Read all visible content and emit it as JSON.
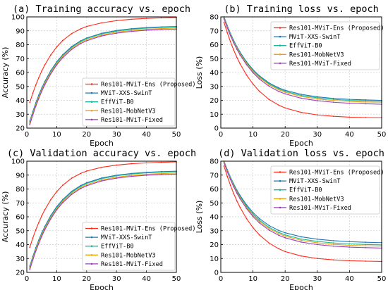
{
  "chart_data": [
    {
      "type": "line",
      "title": "(a) Training accuracy vs. epoch",
      "xlabel": "Epoch",
      "ylabel": "Accuracy (%)",
      "xlim": [
        0,
        50
      ],
      "ylim": [
        20,
        100
      ],
      "xticks": [
        0,
        10,
        20,
        30,
        40,
        50
      ],
      "yticks": [
        20,
        30,
        40,
        50,
        60,
        70,
        80,
        90,
        100
      ],
      "grid": true,
      "legend_position": "lower-right",
      "x": [
        1,
        2,
        3,
        4,
        5,
        6,
        8,
        10,
        12,
        15,
        18,
        20,
        25,
        30,
        35,
        40,
        45,
        50
      ],
      "series": [
        {
          "name": "Res101-MViT-Ens (Proposed)",
          "color": "#ff2a1a",
          "values": [
            38.5,
            45.1,
            51.0,
            56.3,
            61.1,
            65.4,
            72.6,
            78.4,
            83.0,
            88.0,
            91.4,
            93.1,
            95.7,
            97.3,
            98.3,
            98.9,
            99.3,
            99.6
          ]
        },
        {
          "name": "MViT-XXS-SwinT",
          "color": "#1f77b4",
          "values": [
            25.0,
            31.9,
            38.2,
            43.8,
            48.9,
            53.5,
            61.3,
            67.7,
            72.8,
            78.7,
            82.8,
            84.8,
            88.2,
            90.2,
            91.5,
            92.3,
            92.8,
            93.1
          ]
        },
        {
          "name": "EffViT-B0",
          "color": "#17b899",
          "values": [
            24.0,
            31.0,
            37.3,
            42.9,
            48.1,
            52.7,
            60.6,
            67.0,
            72.2,
            78.1,
            82.3,
            84.4,
            87.8,
            89.8,
            91.1,
            91.9,
            92.4,
            92.7
          ]
        },
        {
          "name": "Res101-MobNetV3",
          "color": "#f0a30a",
          "values": [
            23.5,
            30.4,
            36.7,
            42.3,
            47.4,
            52.0,
            59.9,
            66.3,
            71.5,
            77.4,
            81.6,
            83.6,
            87.0,
            89.0,
            90.3,
            91.1,
            91.6,
            91.9
          ]
        },
        {
          "name": "Res101-MViT-Fixed",
          "color": "#9a3fbf",
          "values": [
            22.5,
            29.4,
            35.7,
            41.3,
            46.5,
            51.1,
            59.0,
            65.5,
            70.6,
            76.6,
            80.8,
            82.8,
            86.3,
            88.3,
            89.6,
            90.4,
            90.9,
            91.2
          ]
        }
      ]
    },
    {
      "type": "line",
      "title": "(b) Training loss vs. epoch",
      "xlabel": "Epoch",
      "ylabel": "Loss (%)",
      "xlim": [
        0,
        50
      ],
      "ylim": [
        0,
        80
      ],
      "xticks": [
        0,
        10,
        20,
        30,
        40,
        50
      ],
      "yticks": [
        0,
        10,
        20,
        30,
        40,
        50,
        60,
        70,
        80
      ],
      "grid": true,
      "legend_position": "top-right",
      "x": [
        1,
        2,
        3,
        4,
        5,
        6,
        8,
        10,
        12,
        15,
        18,
        20,
        25,
        30,
        35,
        40,
        45,
        50
      ],
      "series": [
        {
          "name": "Res101-MViT-Ens (Proposed)",
          "color": "#ff2a1a",
          "values": [
            76.0,
            68.7,
            62.1,
            56.2,
            50.9,
            46.2,
            38.2,
            31.7,
            26.5,
            20.6,
            16.5,
            14.5,
            11.3,
            9.5,
            8.5,
            7.9,
            7.6,
            7.4
          ]
        },
        {
          "name": "MViT-XXS-SwinT",
          "color": "#1f77b4",
          "values": [
            80.0,
            73.8,
            68.1,
            63.1,
            58.6,
            54.6,
            47.7,
            42.1,
            37.6,
            32.5,
            28.9,
            27.2,
            24.3,
            22.5,
            21.4,
            20.7,
            20.3,
            20.0
          ]
        },
        {
          "name": "EffViT-B0",
          "color": "#17b899",
          "values": [
            79.5,
            73.3,
            67.6,
            62.6,
            58.1,
            54.0,
            47.1,
            41.5,
            37.0,
            31.9,
            28.3,
            26.5,
            23.5,
            21.8,
            20.7,
            20.0,
            19.6,
            19.3
          ]
        },
        {
          "name": "Res101-MobNetV3",
          "color": "#f0a30a",
          "values": [
            79.0,
            72.7,
            67.0,
            61.9,
            57.4,
            53.3,
            46.4,
            40.8,
            36.3,
            31.2,
            27.6,
            25.8,
            22.8,
            21.0,
            19.9,
            19.2,
            18.8,
            18.6
          ]
        },
        {
          "name": "Res101-MViT-Fixed",
          "color": "#9a3fbf",
          "values": [
            78.5,
            72.2,
            66.5,
            61.3,
            56.7,
            52.6,
            45.6,
            39.9,
            35.3,
            30.1,
            26.4,
            24.6,
            21.5,
            19.7,
            18.6,
            17.9,
            17.5,
            17.2
          ]
        }
      ]
    },
    {
      "type": "line",
      "title": "(c) Validation accuracy vs. epoch",
      "xlabel": "Epoch",
      "ylabel": "Accuracy (%)",
      "xlim": [
        0,
        50
      ],
      "ylim": [
        20,
        100
      ],
      "xticks": [
        0,
        10,
        20,
        30,
        40,
        50
      ],
      "yticks": [
        20,
        30,
        40,
        50,
        60,
        70,
        80,
        90,
        100
      ],
      "grid": true,
      "legend_position": "lower-right",
      "x": [
        1,
        2,
        3,
        4,
        5,
        6,
        8,
        10,
        12,
        15,
        18,
        20,
        25,
        30,
        35,
        40,
        45,
        50
      ],
      "series": [
        {
          "name": "Res101-MViT-Ens (Proposed)",
          "color": "#ff2a1a",
          "values": [
            38.0,
            44.7,
            50.6,
            55.9,
            60.7,
            65.0,
            72.3,
            78.1,
            82.7,
            87.8,
            91.2,
            92.9,
            95.6,
            97.2,
            98.2,
            98.8,
            99.2,
            99.5
          ]
        },
        {
          "name": "MViT-XXS-SwinT",
          "color": "#1f77b4",
          "values": [
            24.5,
            31.4,
            37.7,
            43.3,
            48.4,
            53.0,
            60.9,
            67.3,
            72.4,
            78.3,
            82.5,
            84.5,
            87.9,
            89.9,
            91.2,
            92.0,
            92.5,
            92.8
          ]
        },
        {
          "name": "EffViT-B0",
          "color": "#17b899",
          "values": [
            23.5,
            30.5,
            36.8,
            42.5,
            47.6,
            52.3,
            60.2,
            66.6,
            71.8,
            77.8,
            81.9,
            84.0,
            87.4,
            89.5,
            90.8,
            91.6,
            92.1,
            92.4
          ]
        },
        {
          "name": "Res101-MobNetV3",
          "color": "#f0a30a",
          "values": [
            23.0,
            29.9,
            36.2,
            41.8,
            46.9,
            51.5,
            59.4,
            65.8,
            71.0,
            76.9,
            81.1,
            83.1,
            86.5,
            88.5,
            89.8,
            90.6,
            91.1,
            91.4
          ]
        },
        {
          "name": "Res101-MViT-Fixed",
          "color": "#9a3fbf",
          "values": [
            22.0,
            28.9,
            35.2,
            40.8,
            46.0,
            50.6,
            58.5,
            65.0,
            70.1,
            76.1,
            80.3,
            82.3,
            85.8,
            87.8,
            89.1,
            89.9,
            90.4,
            90.7
          ]
        }
      ]
    },
    {
      "type": "line",
      "title": "(d) Validation loss vs. epoch",
      "xlabel": "Epoch",
      "ylabel": "Loss (%)",
      "xlim": [
        0,
        50
      ],
      "ylim": [
        0,
        80
      ],
      "xticks": [
        0,
        10,
        20,
        30,
        40,
        50
      ],
      "yticks": [
        0,
        10,
        20,
        30,
        40,
        50,
        60,
        70,
        80
      ],
      "grid": true,
      "legend_position": "top-right",
      "x": [
        1,
        2,
        3,
        4,
        5,
        6,
        8,
        10,
        12,
        15,
        18,
        20,
        25,
        30,
        35,
        40,
        45,
        50
      ],
      "series": [
        {
          "name": "Res101-MViT-Ens (Proposed)",
          "color": "#ff2a1a",
          "values": [
            76.5,
            69.2,
            62.6,
            56.7,
            51.4,
            46.7,
            38.7,
            32.2,
            27.0,
            21.1,
            17.0,
            15.0,
            11.8,
            10.0,
            9.0,
            8.4,
            8.1,
            7.9
          ]
        },
        {
          "name": "MViT-XXS-SwinT",
          "color": "#1f77b4",
          "values": [
            80.0,
            74.0,
            68.5,
            63.6,
            59.2,
            55.3,
            48.6,
            43.1,
            38.7,
            33.7,
            30.2,
            28.5,
            25.6,
            23.9,
            22.8,
            22.1,
            21.7,
            21.4
          ]
        },
        {
          "name": "EffViT-B0",
          "color": "#17b899",
          "values": [
            79.8,
            73.6,
            68.0,
            63.0,
            58.5,
            54.5,
            47.6,
            42.0,
            37.5,
            32.4,
            28.8,
            27.0,
            24.0,
            22.3,
            21.2,
            20.5,
            20.1,
            19.8
          ]
        },
        {
          "name": "Res101-MobNetV3",
          "color": "#f0a30a",
          "values": [
            79.3,
            73.0,
            67.3,
            62.2,
            57.7,
            53.6,
            46.7,
            41.1,
            36.6,
            31.5,
            27.9,
            26.1,
            23.1,
            21.3,
            20.2,
            19.5,
            19.1,
            18.9
          ]
        },
        {
          "name": "Res101-MViT-Fixed",
          "color": "#9a3fbf",
          "values": [
            78.8,
            72.5,
            66.8,
            61.6,
            57.0,
            52.9,
            45.9,
            40.2,
            35.6,
            30.4,
            26.7,
            24.9,
            21.8,
            20.0,
            18.9,
            18.2,
            17.8,
            17.5
          ]
        }
      ]
    }
  ]
}
